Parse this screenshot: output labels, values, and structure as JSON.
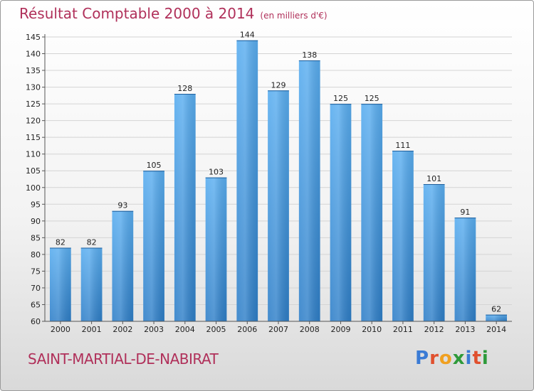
{
  "title": "Résultat Comptable 2000 à 2014",
  "subtitle": "(en milliers d'€)",
  "commune": "SAINT-MARTIAL-DE-NABIRAT",
  "logo": {
    "letters": [
      "P",
      "r",
      "o",
      "x",
      "i",
      "t",
      "i"
    ],
    "colors": [
      "#3a7bd5",
      "#e0502e",
      "#f0a020",
      "#2e9a3a",
      "#3a7bd5",
      "#e0502e",
      "#2e9a3a"
    ]
  },
  "chart_data": {
    "type": "bar",
    "title": "Résultat Comptable 2000 à 2014",
    "subtitle": "(en milliers d'€)",
    "categories": [
      "2000",
      "2001",
      "2002",
      "2003",
      "2004",
      "2005",
      "2006",
      "2007",
      "2008",
      "2009",
      "2010",
      "2011",
      "2012",
      "2013",
      "2014"
    ],
    "values": [
      82,
      82,
      93,
      105,
      128,
      103,
      144,
      129,
      138,
      125,
      125,
      111,
      101,
      91,
      62
    ],
    "ylim": [
      60,
      145
    ],
    "yticks": [
      60,
      65,
      70,
      75,
      80,
      85,
      90,
      95,
      100,
      105,
      110,
      115,
      120,
      125,
      130,
      135,
      140,
      145
    ],
    "grid": true,
    "bar_color": "#4a9ee2",
    "xlabel": "",
    "ylabel": ""
  }
}
